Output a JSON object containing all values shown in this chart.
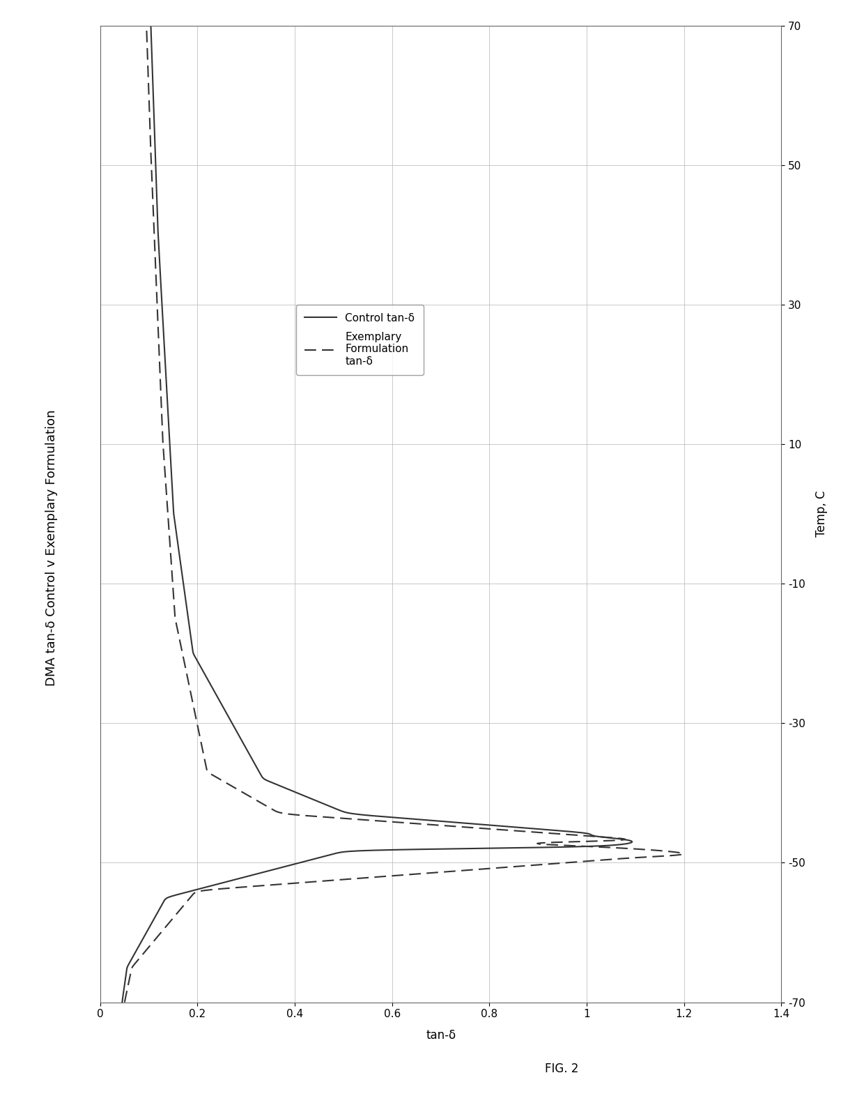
{
  "title": "DMA tan-δ Control v Exemplary Formulation",
  "xlabel_bottom": "tan-δ",
  "ylabel_right": "Temp, C",
  "fig_label": "FIG. 2",
  "temp_lim": [
    -70,
    70
  ],
  "tand_lim": [
    0,
    1.4
  ],
  "temp_ticks": [
    -70,
    -50,
    -30,
    -10,
    10,
    30,
    50,
    70
  ],
  "tand_ticks": [
    0,
    0.2,
    0.4,
    0.6,
    0.8,
    1.0,
    1.2,
    1.4
  ],
  "legend_entries": [
    "Control tan-δ",
    "Exemplary\nFormulation\ntan-δ"
  ],
  "line_color": "#333333",
  "background_color": "#ffffff",
  "grid_color": "#bbbbbb",
  "title_rotation": 90,
  "title_fontsize": 13,
  "tick_fontsize": 11,
  "axis_label_fontsize": 12,
  "fig_label_fontsize": 12
}
